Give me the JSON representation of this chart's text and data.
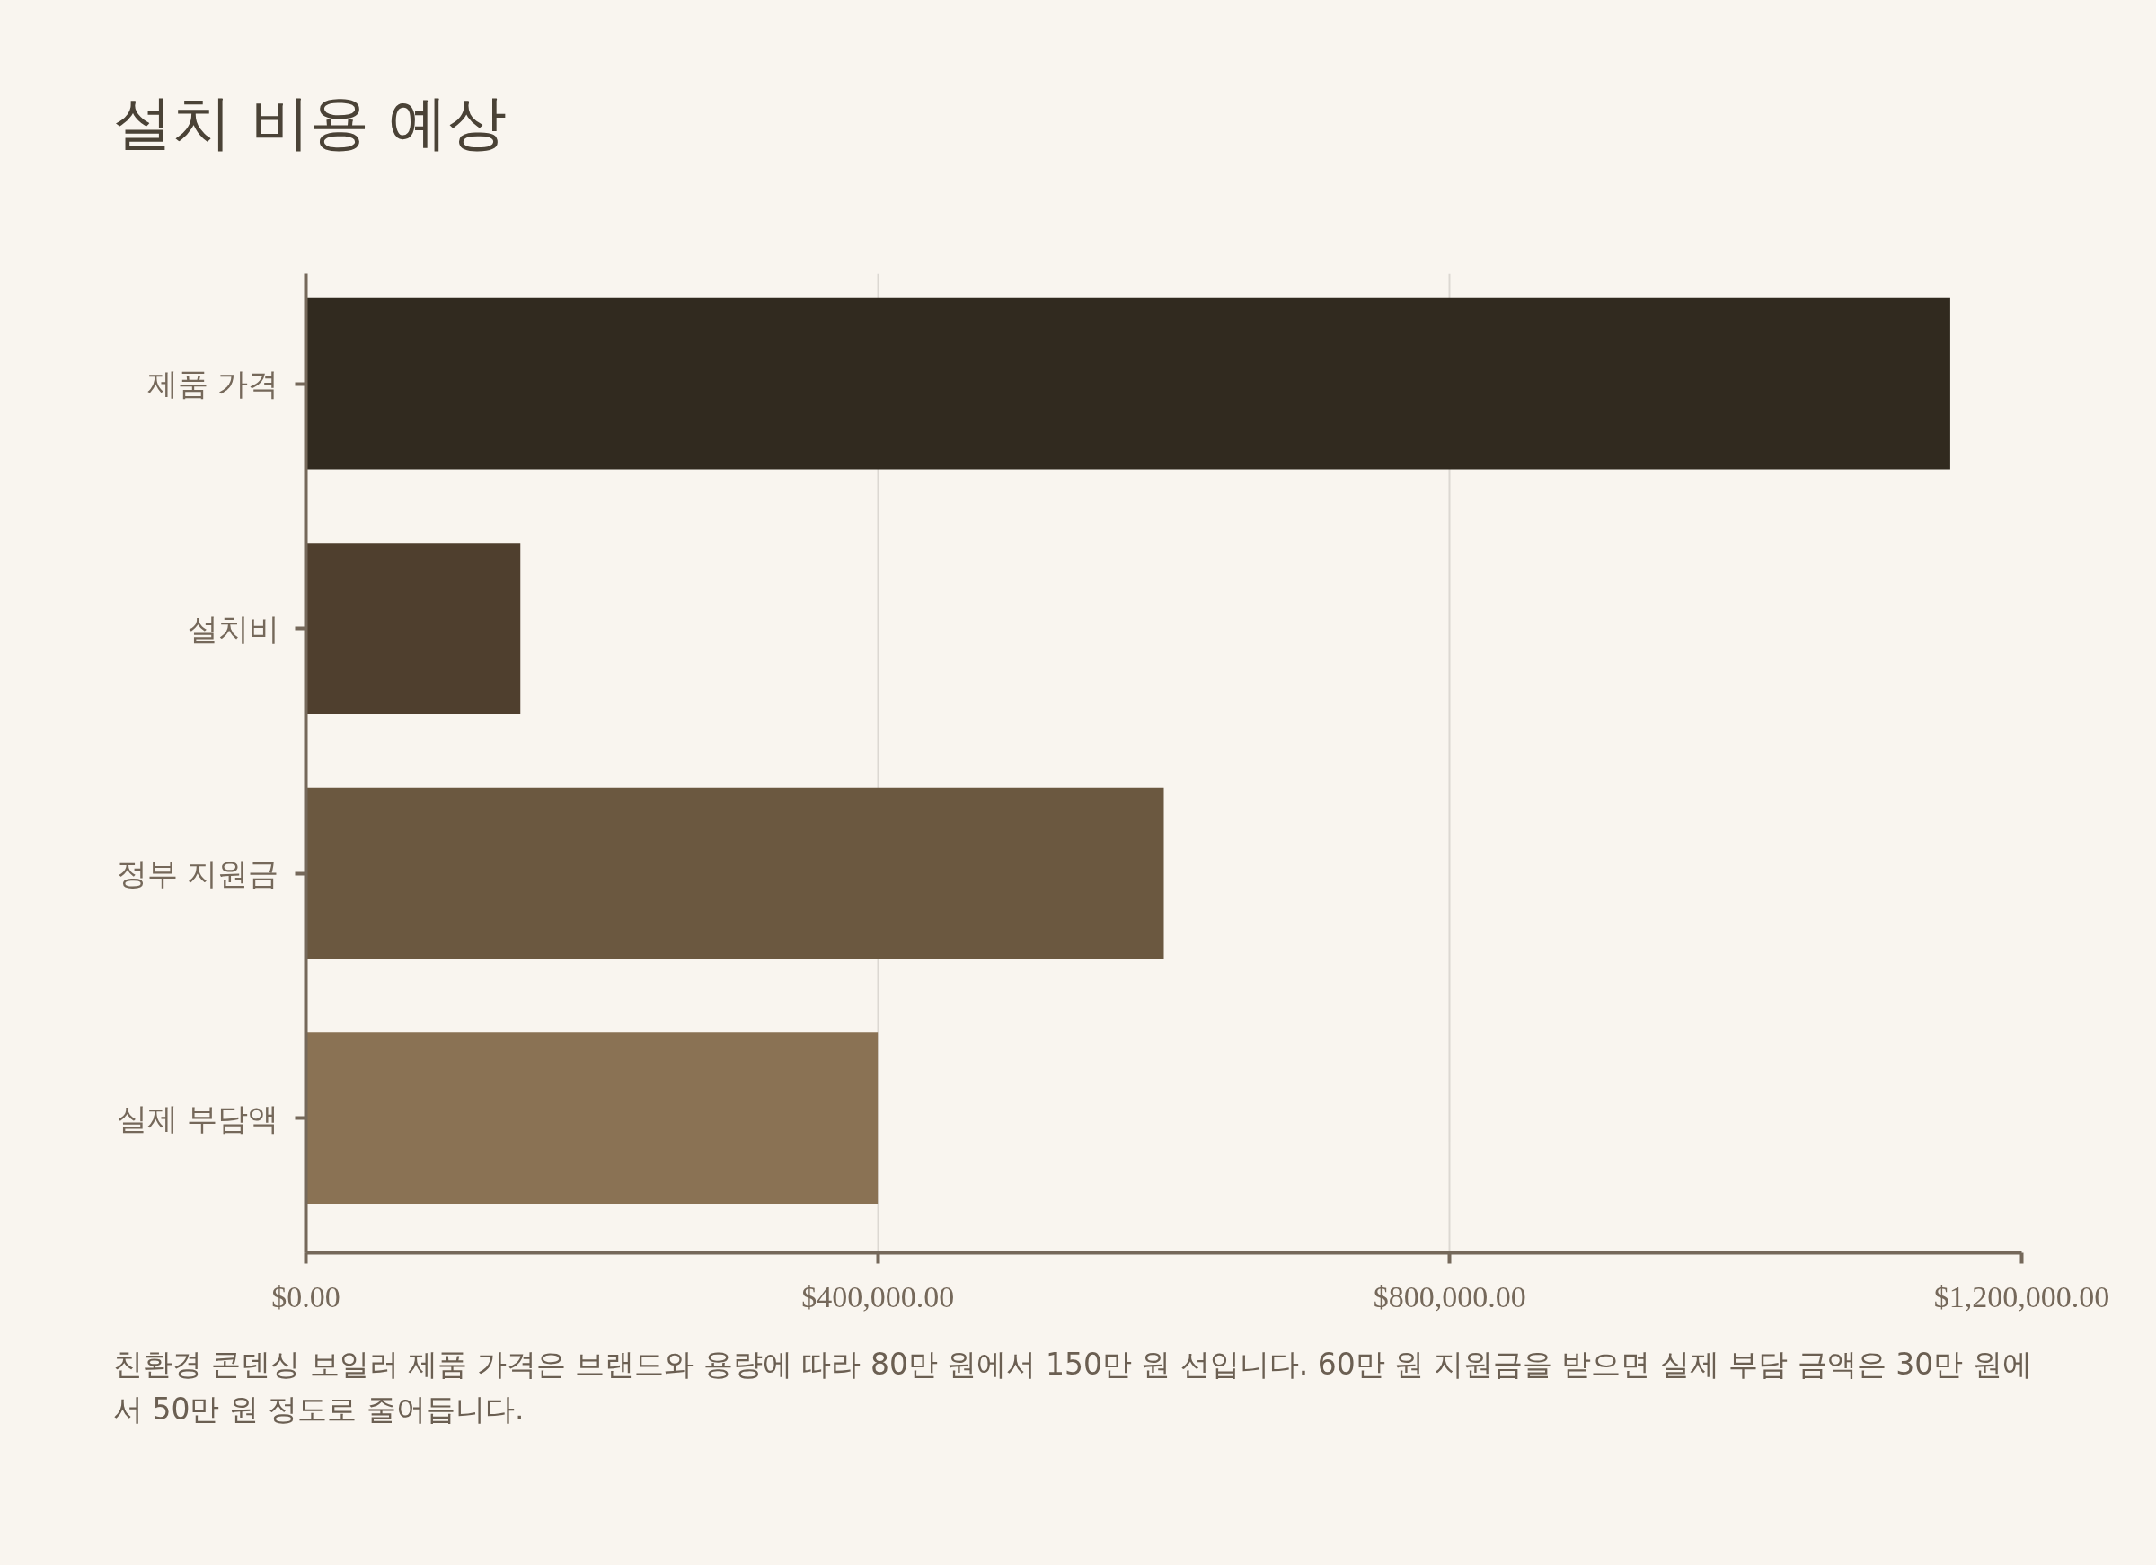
{
  "chart_data": {
    "type": "bar",
    "orientation": "horizontal",
    "title": "설치 비용 예상",
    "categories": [
      "제품 가격",
      "설치비",
      "정부 지원금",
      "실제 부담액"
    ],
    "values": [
      1150000,
      150000,
      600000,
      400000
    ],
    "colors": [
      "#312a1f",
      "#4f3f2e",
      "#6b5840",
      "#8a7254"
    ],
    "xlim": [
      0,
      1200000
    ],
    "xticks": [
      {
        "value": 0,
        "label": "$0.00"
      },
      {
        "value": 400000,
        "label": "$400,000.00"
      },
      {
        "value": 800000,
        "label": "$800,000.00"
      },
      {
        "value": 1200000,
        "label": "$1,200,000.00"
      }
    ],
    "grid": "x",
    "annotations": [
      "친환경 콘덴싱 보일러 제품 가격은 브랜드와 용량에 따라 80만 원에서 150만 원 선입니다. 60만 원 지원금을 받으면 실제 부담 금액은 30만 원에서 50만 원 정도로 줄어듭니다."
    ]
  }
}
